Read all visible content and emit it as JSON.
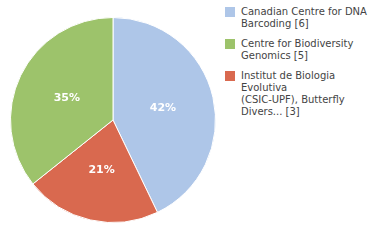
{
  "chart_data": {
    "type": "pie",
    "categories": [
      "Canadian Centre for DNA\nBarcoding [6]",
      "Institut de Biologia Evolutiva\n(CSIC-UPF), Butterfly\nDivers... [3]",
      "Centre for Biodiversity\nGenomics [5]"
    ],
    "values": [
      42,
      21,
      35
    ],
    "value_labels": [
      "42%",
      "21%",
      "35%"
    ],
    "data_labels": true,
    "colors": [
      "#aec6e8",
      "#d9694f",
      "#9dc36b"
    ],
    "legend": "upper right"
  }
}
